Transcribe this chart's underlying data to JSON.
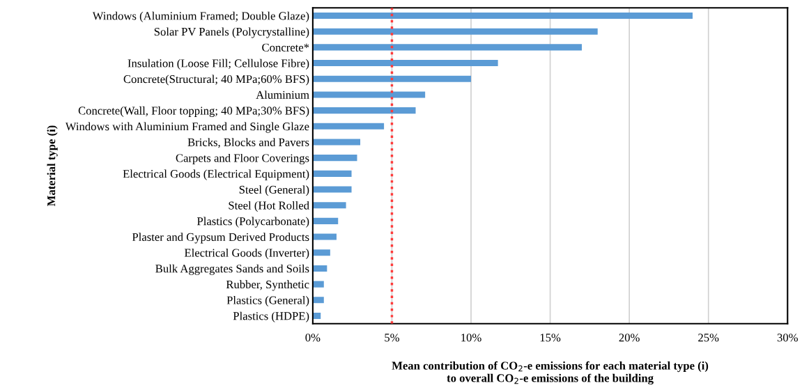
{
  "chart_data": {
    "type": "bar",
    "orientation": "horizontal",
    "categories": [
      "Windows (Aluminium Framed; Double Glaze)",
      "Solar PV Panels (Polycrystalline)",
      "Concrete*",
      "Insulation (Loose Fill; Cellulose Fibre)",
      "Concrete(Structural; 40 MPa;60% BFS)",
      "Aluminium",
      "Concrete(Wall, Floor topping; 40 MPa;30% BFS)",
      "Windows with Aluminium Framed and Single Glaze",
      "Bricks, Blocks and Pavers",
      "Carpets and Floor Coverings",
      "Electrical Goods (Electrical Equipment)",
      "Steel (General)",
      "Steel (Hot Rolled",
      "Plastics (Polycarbonate)",
      "Plaster and Gypsum Derived Products",
      "Electrical Goods (Inverter)",
      "Bulk Aggregates Sands and Soils",
      "Rubber, Synthetic",
      "Plastics (General)",
      "Plastics (HDPE)"
    ],
    "values": [
      24.0,
      18.0,
      17.0,
      11.7,
      10.0,
      7.1,
      6.5,
      4.5,
      3.0,
      2.8,
      2.45,
      2.45,
      2.1,
      1.6,
      1.5,
      1.1,
      0.9,
      0.7,
      0.7,
      0.5
    ],
    "color": "#5b9bd5",
    "xlim": [
      0,
      30
    ],
    "xticks": [
      {
        "value": 0,
        "label": "0%"
      },
      {
        "value": 5,
        "label": "5%"
      },
      {
        "value": 10,
        "label": "10%"
      },
      {
        "value": 15,
        "label": "15%"
      },
      {
        "value": 20,
        "label": "20%"
      },
      {
        "value": 25,
        "label": "25%"
      },
      {
        "value": 30,
        "label": "30%"
      }
    ],
    "xlabel": "Mean contribution of CO$_{2}$-e emissions for each material type (i)\nto overall CO$_{2}$-e emissions of the building",
    "ylabel": "Material type (i)",
    "grid": "x",
    "ref_lines": [
      {
        "axis": "x",
        "value": 5,
        "color": "#ff3b3b",
        "line_style": "dotted"
      }
    ]
  }
}
